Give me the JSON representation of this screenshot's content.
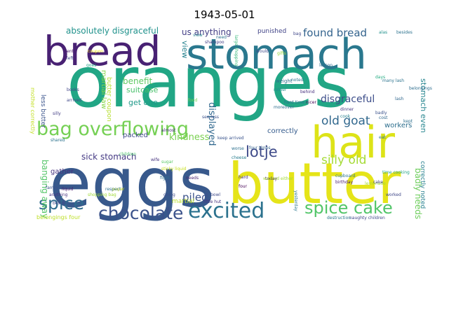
{
  "title": "1943-05-01",
  "words": [
    {
      "text": "oranges",
      "color": "#21a685"
    },
    {
      "text": "eggs",
      "color": "#38598c"
    },
    {
      "text": "butter",
      "color": "#e5e419"
    },
    {
      "text": "stomach",
      "color": "#2a788e"
    },
    {
      "text": "bread",
      "color": "#482173"
    },
    {
      "text": "hair",
      "color": "#dde318"
    },
    {
      "text": "bag overflowing",
      "color": "#75d054"
    },
    {
      "text": "excited",
      "color": "#2c728e"
    },
    {
      "text": "chocolate",
      "color": "#3b528b"
    },
    {
      "text": "spice cake",
      "color": "#52c569"
    },
    {
      "text": "spice",
      "color": "#2f6c8e"
    },
    {
      "text": "lotje",
      "color": "#3e4a89"
    },
    {
      "text": "old goat",
      "color": "#31688e"
    },
    {
      "text": "found bread",
      "color": "#33638d"
    },
    {
      "text": "silly old",
      "color": "#a5db36"
    },
    {
      "text": "disgraceful",
      "color": "#3d4e8a"
    },
    {
      "text": "absolutely disgraceful",
      "color": "#20928c"
    },
    {
      "text": "us anything",
      "color": "#433e85"
    },
    {
      "text": "piled",
      "color": "#3b528b"
    },
    {
      "text": "sick stomach",
      "color": "#443983"
    },
    {
      "text": "kindness",
      "color": "#7ad151"
    },
    {
      "text": "displayed",
      "color": "#31688e"
    },
    {
      "text": "benefit",
      "color": "#5ec962"
    },
    {
      "text": "view",
      "color": "#26828e"
    },
    {
      "text": "get one",
      "color": "#1f998a"
    },
    {
      "text": "packed",
      "color": "#3e4989"
    },
    {
      "text": "suitcase",
      "color": "#4ac16d"
    },
    {
      "text": "banging away",
      "color": "#54c568"
    },
    {
      "text": "badly needs",
      "color": "#6ccd5a"
    },
    {
      "text": "stomach even",
      "color": "#25858e"
    },
    {
      "text": "correctly noted",
      "color": "#27808e"
    },
    {
      "text": "workers",
      "color": "#2e6f8e"
    },
    {
      "text": "correctly",
      "color": "#365c8d"
    },
    {
      "text": "punished",
      "color": "#414487"
    },
    {
      "text": "gather",
      "color": "#46337f"
    },
    {
      "text": "martial law",
      "color": "#86d549"
    },
    {
      "text": "butter coupon",
      "color": "#b5de2b"
    },
    {
      "text": "less butter",
      "color": "#3a548c"
    },
    {
      "text": "mother correctly",
      "color": "#c2df23"
    },
    {
      "text": "belongings four",
      "color": "#bddf26"
    },
    {
      "text": "martial",
      "color": "#b8de29"
    },
    {
      "text": "rather",
      "color": "#228d8d"
    },
    {
      "text": "hard time",
      "color": "#2d708e"
    },
    {
      "text": "children",
      "color": "#4cc26c"
    },
    {
      "text": "naughty children",
      "color": "#3f4788"
    },
    {
      "text": "destruction",
      "color": "#2a768e"
    },
    {
      "text": "shopping bag",
      "color": "#a0da39"
    },
    {
      "text": "many lash",
      "color": "#2c738e"
    },
    {
      "text": "belongings",
      "color": "#2e6e8e"
    },
    {
      "text": "sticky liquid",
      "color": "#c8e020"
    },
    {
      "text": "keep arrived",
      "color": "#3a548c"
    },
    {
      "text": "four times",
      "color": "#34618d"
    },
    {
      "text": "time cooking",
      "color": "#20a386"
    },
    {
      "text": "birthday",
      "color": "#481b6d"
    },
    {
      "text": "yesterday",
      "color": "#2a778e"
    },
    {
      "text": "cupboard",
      "color": "#2b758e"
    },
    {
      "text": "family cook",
      "color": "#3b518b"
    },
    {
      "text": "liquid",
      "color": "#481c6e"
    },
    {
      "text": "paper",
      "color": "#d2e21b"
    },
    {
      "text": "arrived",
      "color": "#3f4889"
    },
    {
      "text": "coupon",
      "color": "#efe51c"
    },
    {
      "text": "gifts",
      "color": "#95d840"
    },
    {
      "text": "weight",
      "color": "#2c728e"
    },
    {
      "text": "behind",
      "color": "#46307e"
    },
    {
      "text": "lemonade",
      "color": "#a8db34"
    },
    {
      "text": "cheese",
      "color": "#287c8e"
    },
    {
      "text": "sugar",
      "color": "#5ac864"
    },
    {
      "text": "moreover",
      "color": "#2e6d8e"
    },
    {
      "text": "hard",
      "color": "#46327e"
    },
    {
      "text": "today",
      "color": "#471365"
    },
    {
      "text": "cook",
      "color": "#26818e"
    },
    {
      "text": "books",
      "color": "#404588"
    },
    {
      "text": "beside",
      "color": "#3f4788"
    },
    {
      "text": "fight",
      "color": "#2d718e"
    },
    {
      "text": "goes",
      "color": "#1fa287"
    },
    {
      "text": "almost",
      "color": "#472d7b"
    },
    {
      "text": "cake",
      "color": "#414287"
    },
    {
      "text": "food",
      "color": "#73d056"
    },
    {
      "text": "wife",
      "color": "#46327e"
    },
    {
      "text": "four",
      "color": "#440154"
    },
    {
      "text": "days",
      "color": "#25ac82"
    },
    {
      "text": "badly",
      "color": "#3b528b"
    },
    {
      "text": "respect",
      "color": "#2d708e"
    },
    {
      "text": "lesson",
      "color": "#2f6b8e"
    },
    {
      "text": "dinner",
      "color": "#453781"
    },
    {
      "text": "silly",
      "color": "#433e85"
    },
    {
      "text": "shared",
      "color": "#2c738e"
    },
    {
      "text": "going",
      "color": "#3d4d8a"
    },
    {
      "text": "needs",
      "color": "#481f70"
    },
    {
      "text": "little hut",
      "color": "#46327e"
    },
    {
      "text": "bowl",
      "color": "#3e4a89"
    },
    {
      "text": "lash",
      "color": "#31688e"
    },
    {
      "text": "besides",
      "color": "#2c728e"
    },
    {
      "text": "alas",
      "color": "#21918c"
    },
    {
      "text": "bag",
      "color": "#3f4788"
    },
    {
      "text": "eat",
      "color": "#2c728e"
    },
    {
      "text": "see less",
      "color": "#3b528b"
    },
    {
      "text": "nicer",
      "color": "#440154"
    },
    {
      "text": "washed either",
      "color": "#a2da37"
    },
    {
      "text": "worse",
      "color": "#2d708e"
    },
    {
      "text": "large shopping",
      "color": "#35b779"
    },
    {
      "text": "would",
      "color": "#3e4989"
    },
    {
      "text": "view",
      "color": "#26828e"
    },
    {
      "text": "shampoo",
      "color": "#433e85"
    },
    {
      "text": "need",
      "color": "#2c728e"
    },
    {
      "text": "noted",
      "color": "#2a768e"
    },
    {
      "text": "anything",
      "color": "#46327e"
    },
    {
      "text": "left",
      "color": "#3e4989"
    },
    {
      "text": "sent",
      "color": "#481a6c"
    },
    {
      "text": "cost",
      "color": "#31688e"
    },
    {
      "text": "worked",
      "color": "#3f4788"
    },
    {
      "text": "kept",
      "color": "#2e6f8e"
    }
  ]
}
